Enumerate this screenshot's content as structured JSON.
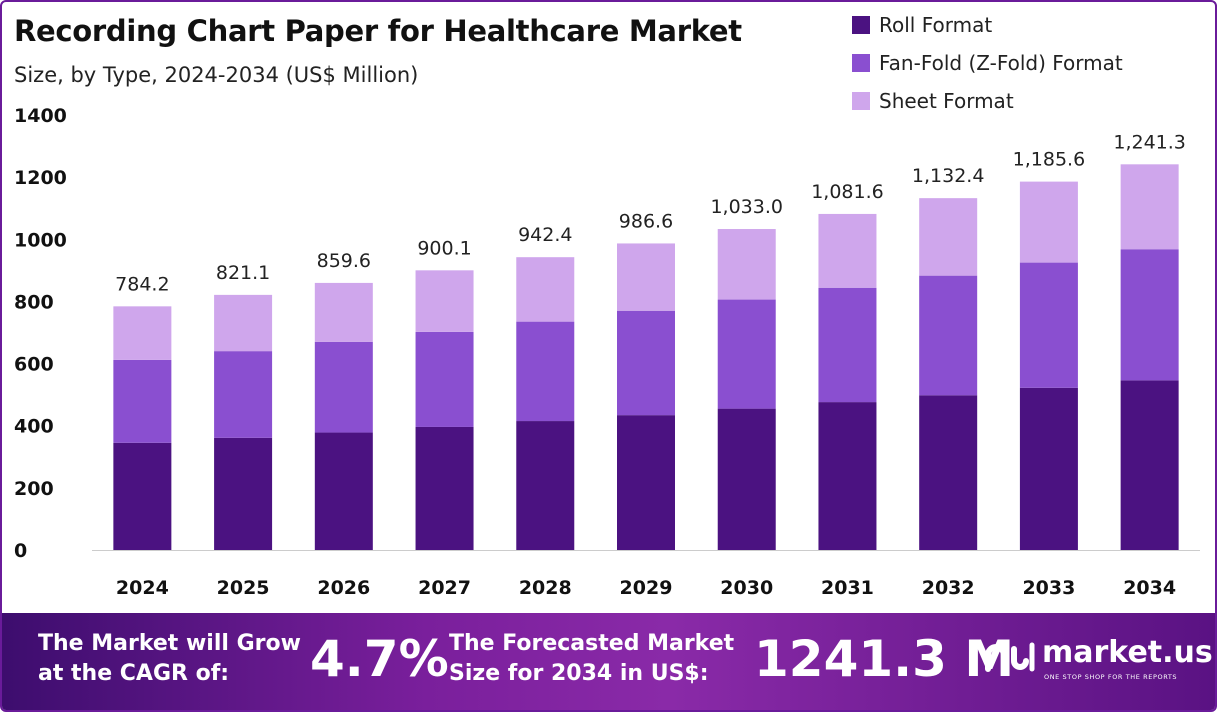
{
  "chart_data": {
    "type": "bar",
    "stacked": true,
    "title": "Recording Chart Paper for Healthcare Market",
    "subtitle": "Size, by Type, 2024-2034 (US$ Million)",
    "categories": [
      "2024",
      "2025",
      "2026",
      "2027",
      "2028",
      "2029",
      "2030",
      "2031",
      "2032",
      "2033",
      "2034"
    ],
    "series": [
      {
        "name": "Roll Format",
        "color": "#4b1281",
        "values": [
          345,
          361,
          378,
          396,
          415,
          434,
          455,
          476,
          498,
          522,
          546
        ]
      },
      {
        "name": "Fan-Fold (Z-Fold) Format",
        "color": "#8a4fd0",
        "values": [
          267,
          279,
          292,
          306,
          320,
          336,
          351,
          368,
          385,
          403,
          422
        ]
      },
      {
        "name": "Sheet Format",
        "color": "#cfa6ec",
        "values": [
          172.2,
          181.1,
          189.6,
          198.1,
          207.4,
          216.6,
          227.0,
          237.6,
          249.4,
          260.6,
          273.3
        ]
      }
    ],
    "totals_labels": [
      "784.2",
      "821.1",
      "859.6",
      "900.1",
      "942.4",
      "986.6",
      "1,033.0",
      "1,081.6",
      "1,132.4",
      "1,185.6",
      "1,241.3"
    ],
    "ylim": [
      0,
      1400
    ],
    "yticks": [
      0,
      200,
      400,
      600,
      800,
      1000,
      1200,
      1400
    ],
    "legend_position": "top-right",
    "grid": false
  },
  "footer": {
    "cagr_label_line1": "The Market will Grow",
    "cagr_label_line2": "at the CAGR of:",
    "cagr_value": "4.7%",
    "forecast_label_line1": "The Forecasted Market",
    "forecast_label_line2": "Size for 2034 in US$:",
    "forecast_value": "1241.3 M",
    "brand": "market.us",
    "brand_tagline": "ONE STOP SHOP FOR THE REPORTS"
  }
}
